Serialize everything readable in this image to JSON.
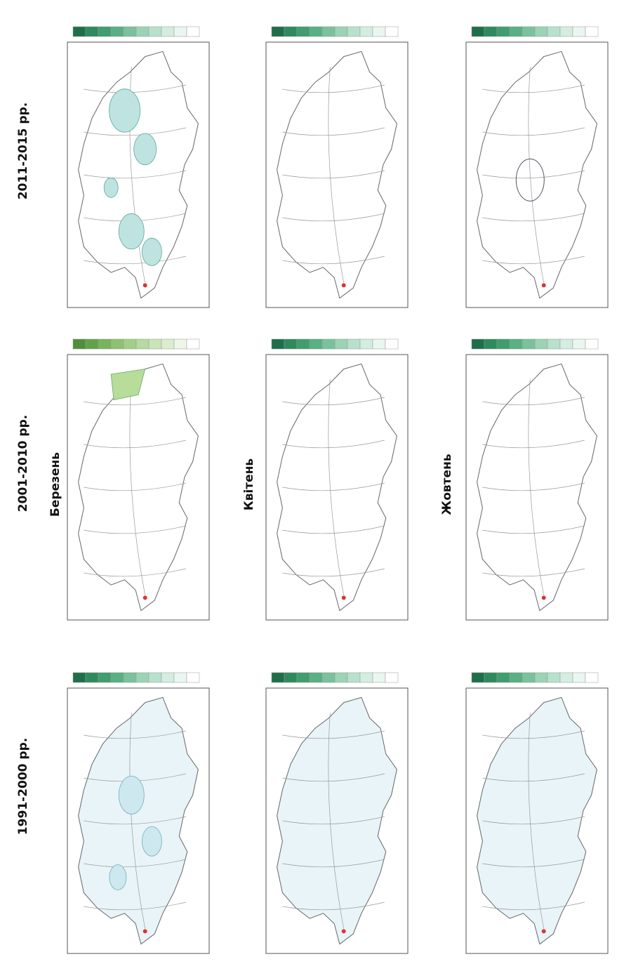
{
  "periods": [
    "2011-2015 рр.",
    "2001-2010 рр.",
    "1991-2000 рр."
  ],
  "months": [
    "Березень",
    "Квітень",
    "Жовтень"
  ]
}
